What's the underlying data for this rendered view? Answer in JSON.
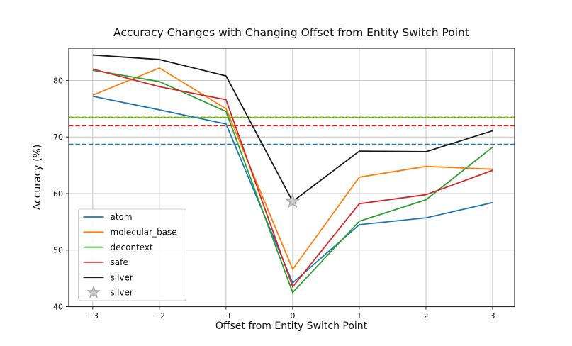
{
  "chart_data": {
    "type": "line",
    "title": "Accuracy Changes with Changing Offset from Entity Switch Point",
    "xlabel": "Offset from Entity Switch Point",
    "ylabel": "Accuracy (%)",
    "grid": true,
    "legend_position": "lower-left",
    "xlim": [
      -3.36,
      3.33
    ],
    "ylim": [
      40,
      85.7
    ],
    "x": [
      -3,
      -2,
      -1,
      0,
      1,
      2,
      3
    ],
    "xtick_labels": [
      "−3",
      "−2",
      "−1",
      "0",
      "1",
      "2",
      "3"
    ],
    "yticks": [
      40,
      50,
      60,
      70,
      80
    ],
    "ytick_labels": [
      "40",
      "50",
      "60",
      "70",
      "80"
    ],
    "series": [
      {
        "name": "atom",
        "color": "#1f77b4",
        "style": "solid",
        "values": [
          77.2,
          74.8,
          72.3,
          44.2,
          54.5,
          55.7,
          58.4
        ]
      },
      {
        "name": "molecular_base",
        "color": "#ff7f0e",
        "style": "solid",
        "values": [
          77.4,
          82.2,
          75.0,
          46.6,
          62.9,
          64.8,
          64.3
        ]
      },
      {
        "name": "decontext",
        "color": "#2ca02c",
        "style": "solid",
        "values": [
          81.8,
          79.8,
          74.5,
          42.5,
          55.1,
          58.9,
          68.2
        ]
      },
      {
        "name": "safe",
        "color": "#d62728",
        "style": "solid",
        "values": [
          82.0,
          78.9,
          76.6,
          43.5,
          58.2,
          59.8,
          64.1
        ]
      },
      {
        "name": "silver",
        "color": "#1a1a1a",
        "style": "solid",
        "values": [
          84.5,
          83.7,
          80.8,
          58.6,
          67.5,
          67.4,
          71.1
        ]
      }
    ],
    "baselines": [
      {
        "name": "yellow-baseline",
        "color": "#bfbf00",
        "value": 73.5,
        "style": "dashed",
        "dash_phase": 0
      },
      {
        "name": "green-baseline",
        "color": "#2ca02c",
        "value": 73.4,
        "style": "dashed",
        "dash_phase": 4.6
      },
      {
        "name": "red-baseline",
        "color": "#d62728",
        "value": 72.0,
        "style": "dashed",
        "dash_phase": 0
      },
      {
        "name": "blue-baseline",
        "color": "#1f77b4",
        "value": 68.7,
        "style": "dashed",
        "dash_phase": 0
      }
    ],
    "marker": {
      "name": "silver",
      "shape": "star",
      "x": 0,
      "y": 58.6,
      "fill": "#c9c9c9",
      "stroke": "#9e9e9e"
    },
    "legend": {
      "entries": [
        {
          "label": "atom",
          "swatch": "line",
          "color": "#1f77b4"
        },
        {
          "label": "molecular_base",
          "swatch": "line",
          "color": "#ff7f0e"
        },
        {
          "label": "decontext",
          "swatch": "line",
          "color": "#2ca02c"
        },
        {
          "label": "safe",
          "swatch": "line",
          "color": "#d62728"
        },
        {
          "label": "silver",
          "swatch": "line",
          "color": "#1a1a1a"
        },
        {
          "label": "silver",
          "swatch": "star",
          "color": "#c9c9c9"
        }
      ]
    },
    "colors": {
      "grid": "#c6c6c6",
      "spine": "#2a2a2a",
      "legend_border": "#cccccc",
      "legend_background": "#ffffff"
    }
  }
}
